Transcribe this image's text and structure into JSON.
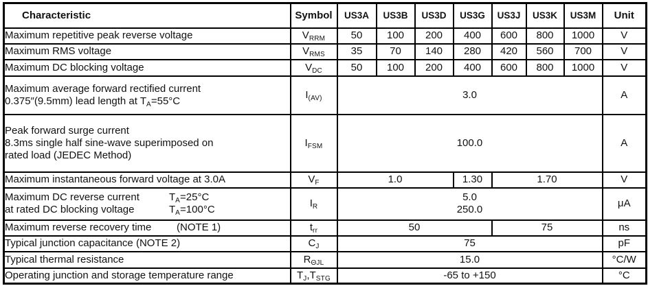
{
  "header": {
    "characteristic": "Characteristic",
    "symbol": "Symbol",
    "parts": [
      "US3A",
      "US3B",
      "US3D",
      "US3G",
      "US3J",
      "US3K",
      "US3M"
    ],
    "unit": "Unit"
  },
  "rows": {
    "vrrm": {
      "characteristic": "Maximum repetitive peak reverse voltage",
      "symbol": [
        {
          "t": "V"
        },
        {
          "t": "RRM",
          "sub": true
        }
      ],
      "values": [
        "50",
        "100",
        "200",
        "400",
        "600",
        "800",
        "1000"
      ],
      "unit": "V"
    },
    "vrms": {
      "characteristic": "Maximum RMS voltage",
      "symbol": [
        {
          "t": "V"
        },
        {
          "t": "RMS",
          "sub": true
        }
      ],
      "values": [
        "35",
        "70",
        "140",
        "280",
        "420",
        "560",
        "700"
      ],
      "unit": "V"
    },
    "vdc": {
      "characteristic": "Maximum DC blocking voltage",
      "symbol": [
        {
          "t": "V"
        },
        {
          "t": "DC",
          "sub": true
        }
      ],
      "values": [
        "50",
        "100",
        "200",
        "400",
        "600",
        "800",
        "1000"
      ],
      "unit": "V"
    },
    "iav": {
      "line1": "Maximum average forward rectified current",
      "line2": [
        {
          "t": "0.375″(9.5mm) lead length at T"
        },
        {
          "t": "A",
          "sub": true
        },
        {
          "t": "=55°C"
        }
      ],
      "symbol": [
        {
          "t": "I"
        },
        {
          "t": "(AV)",
          "sub": true
        }
      ],
      "value": "3.0",
      "unit": "A"
    },
    "ifsm": {
      "line1": "Peak forward surge current",
      "line2": "8.3ms single half sine-wave superimposed on",
      "line3": "rated load (JEDEC Method)",
      "symbol": [
        {
          "t": "I"
        },
        {
          "t": "FSM",
          "sub": true
        }
      ],
      "value": "100.0",
      "unit": "A"
    },
    "vf": {
      "characteristic": "Maximum instantaneous forward voltage at 3.0A",
      "symbol": [
        {
          "t": "V"
        },
        {
          "t": "F",
          "sub": true
        }
      ],
      "values": [
        "1.0",
        "1.30",
        "1.70"
      ],
      "unit": "V"
    },
    "ir": {
      "line1_text": "Maximum DC reverse current",
      "line1_cond": [
        {
          "t": "T"
        },
        {
          "t": "A",
          "sub": true
        },
        {
          "t": "=25°C"
        }
      ],
      "line2_text": "at rated DC blocking voltage",
      "line2_cond": [
        {
          "t": "T"
        },
        {
          "t": "A",
          "sub": true
        },
        {
          "t": "=100°C"
        }
      ],
      "symbol": [
        {
          "t": "I"
        },
        {
          "t": "R",
          "sub": true
        }
      ],
      "value_at_25": "5.0",
      "value_at_100": "250.0",
      "unit": "μA"
    },
    "trr": {
      "text": "Maximum reverse recovery time",
      "note": "(NOTE 1)",
      "symbol": [
        {
          "t": "t"
        },
        {
          "t": "rr",
          "sub": true
        }
      ],
      "values": [
        "50",
        "75"
      ],
      "unit": "ns"
    },
    "cj": {
      "characteristic": "Typical junction capacitance (NOTE 2)",
      "symbol": [
        {
          "t": "C"
        },
        {
          "t": "J",
          "sub": true
        }
      ],
      "value": "75",
      "unit": "pF"
    },
    "rthjl": {
      "characteristic": "Typical thermal resistance",
      "symbol": [
        {
          "t": "R"
        },
        {
          "t": "ΘJL",
          "sub": true
        }
      ],
      "value": "15.0",
      "unit": "°C/W"
    },
    "tj_tstg": {
      "characteristic": "Operating junction and storage temperature range",
      "symbol": [
        {
          "t": "T"
        },
        {
          "t": "J",
          "sub": true
        },
        {
          "t": ",T"
        },
        {
          "t": "STG",
          "sub": true
        }
      ],
      "value": "-65 to +150",
      "unit": "°C"
    }
  }
}
